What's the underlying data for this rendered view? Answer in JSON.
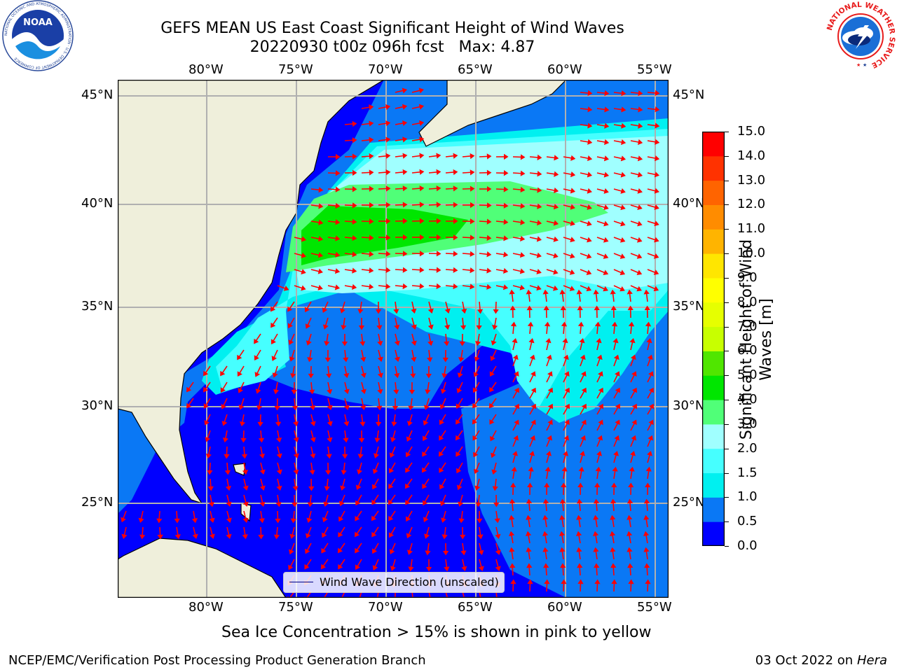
{
  "title": {
    "line1": "GEFS MEAN US East Coast Significant Height of Wind Waves",
    "line2": "20220930 t00z 096h fcst   Max: 4.87"
  },
  "map": {
    "lon_labels_top": [
      "80°W",
      "75°W",
      "70°W",
      "65°W",
      "60°W",
      "55°W"
    ],
    "lon_labels_bottom": [
      "80°W",
      "75°W",
      "70°W",
      "65°W",
      "60°W",
      "55°W"
    ],
    "lat_labels_left": [
      "45°N",
      "40°N",
      "35°N",
      "30°N",
      "25°N"
    ],
    "lat_labels_right": [
      "45°N",
      "40°N",
      "35°N",
      "30°N",
      "25°N"
    ],
    "land_color": "#efefdb",
    "arrow_color": "#ff0000",
    "grid_color": "#b0b0b0",
    "legend_label": "Wind Wave Direction (unscaled)"
  },
  "colorbar": {
    "label": "Significant Height of Wind Waves [m]",
    "label_line1": "Significant Height of Wind",
    "label_line2": "Waves [m]",
    "levels": [
      "0.0",
      "0.5",
      "1.0",
      "1.5",
      "2.0",
      "3.0",
      "4.0",
      "5.0",
      "6.0",
      "7.0",
      "8.0",
      "9.0",
      "10.0",
      "11.0",
      "12.0",
      "13.0",
      "14.0",
      "15.0"
    ],
    "colors": [
      "#0000ff",
      "#0a78f5",
      "#00f0f0",
      "#46ffff",
      "#a0ffff",
      "#50ff78",
      "#00e600",
      "#50e600",
      "#c8ff00",
      "#e6ff00",
      "#ffff00",
      "#ffe600",
      "#ffb400",
      "#ff8c00",
      "#ff6400",
      "#ff3200",
      "#ff0000"
    ]
  },
  "caption": "Sea Ice Concentration > 15% is shown in pink to yellow",
  "footer": {
    "left": "NCEP/EMC/Verification Post Processing Product Generation Branch",
    "right_prefix": "03 Oct 2022 on ",
    "right_machine": "Hera"
  },
  "logos": {
    "noaa_text": "NOAA",
    "noaa_ring": "NATIONAL OCEANIC AND ATMOSPHERIC ADMINISTRATION · U.S. DEPARTMENT OF COMMERCE",
    "nws_ring": "NATIONAL WEATHER SERVICE"
  }
}
